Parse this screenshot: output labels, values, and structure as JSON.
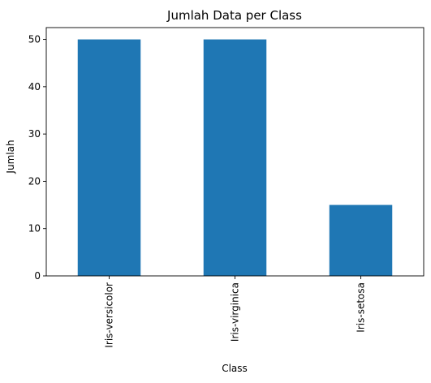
{
  "chart_data": {
    "type": "bar",
    "title": "Jumlah Data per Class",
    "xlabel": "Class",
    "ylabel": "Jumlah",
    "categories": [
      "Iris-versicolor",
      "Iris-virginica",
      "Iris-setosa"
    ],
    "values": [
      50,
      50,
      15
    ],
    "ylim": [
      0,
      52.5
    ],
    "yticks": [
      0,
      10,
      20,
      30,
      40,
      50
    ],
    "bar_color": "#1f77b4",
    "grid": false,
    "legend": false
  }
}
